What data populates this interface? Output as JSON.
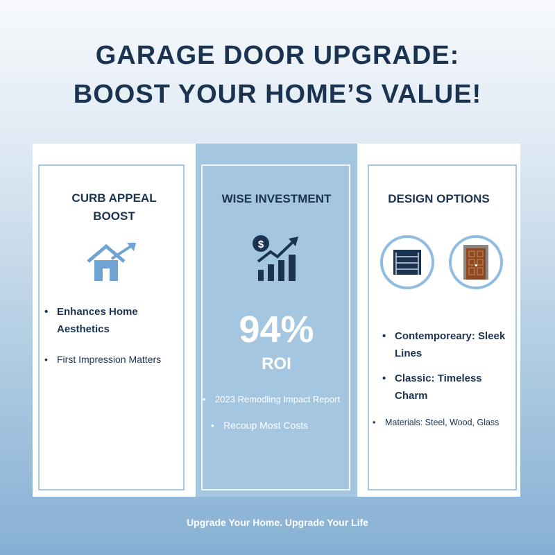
{
  "title": {
    "line1": "GARAGE DOOR UPGRADE:",
    "line2": "BOOST YOUR HOME’S VALUE!"
  },
  "cards": [
    {
      "heading_line1": "CURB APPEAL",
      "heading_line2": "BOOST",
      "icon": "house-growth-icon",
      "bullets": [
        "Enhances Home Aesthetics",
        "First Impression Matters"
      ]
    },
    {
      "heading": "WISE INVESTMENT",
      "icon": "dollar-chart-growth-icon",
      "stat": "94%",
      "stat_label": "ROI",
      "bullets": [
        "2023 Remodling Impact Report",
        "Recoup Most Costs"
      ]
    },
    {
      "heading": "DESIGN OPTIONS",
      "icons": [
        "garage-door-icon",
        "wooden-door-icon"
      ],
      "bullets": [
        "Contemporeary: Sleek Lines",
        "Classic: Timeless Charm",
        "Materials: Steel, Wood, Glass"
      ]
    }
  ],
  "footer": "Upgrade Your Home. Upgrade Your Life",
  "colors": {
    "navy": "#1a3350",
    "accent": "#6fa3d4",
    "panel": "#a5c6e0"
  }
}
